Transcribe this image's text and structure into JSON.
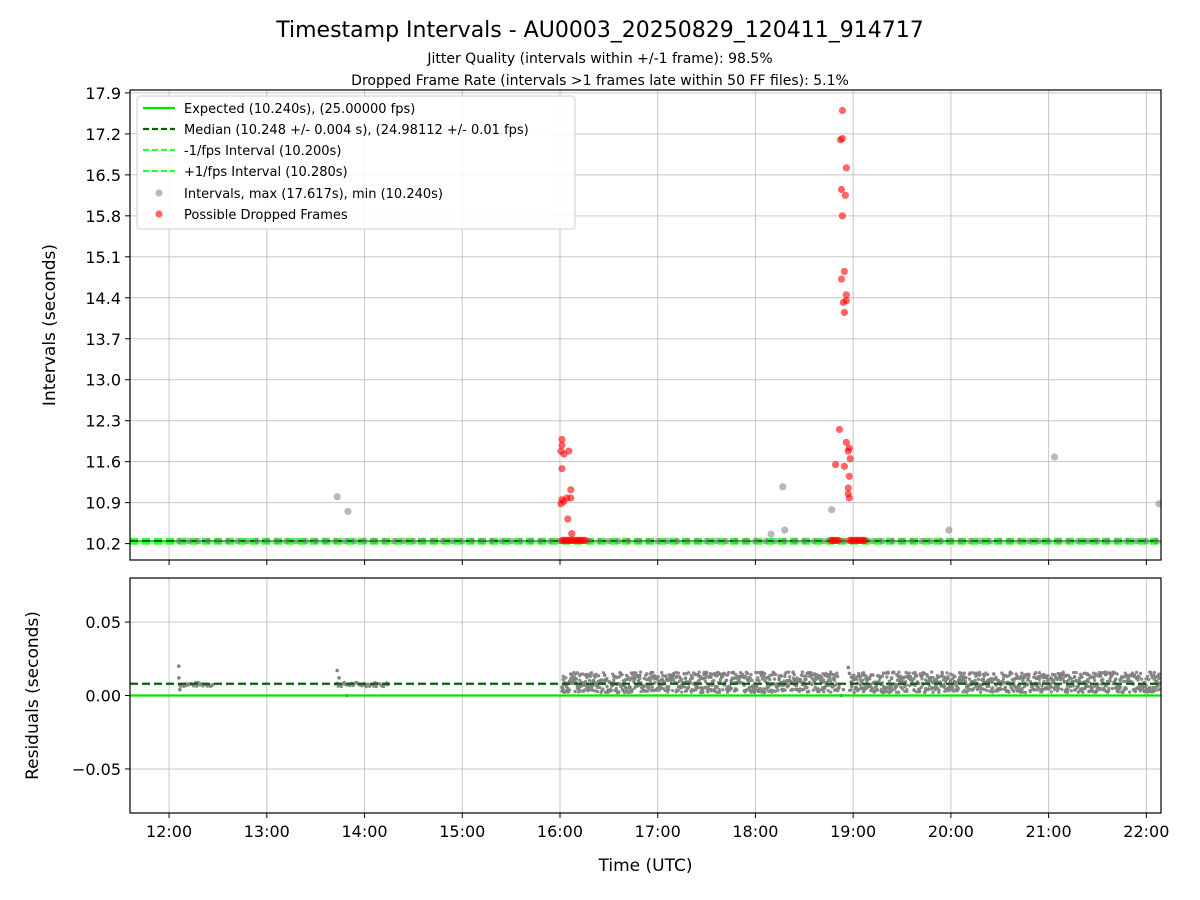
{
  "title": "Timestamp Intervals - AU0003_20250829_120411_914717",
  "subtitle_lines": [
    "Jitter Quality (intervals within +/-1 frame): 98.5%",
    "Dropped Frame Rate (intervals >1 frames late within 50 FF files): 5.1%"
  ],
  "colors": {
    "expected": "#00e600",
    "median": "#006400",
    "bounds": "#33ff33",
    "intervals": "#808080",
    "dropped": "#ff0000",
    "grid": "#b0b0b0"
  },
  "chart_data": [
    {
      "type": "scatter",
      "name": "intervals",
      "xlabel": "",
      "ylabel": "Intervals (seconds)",
      "xlim": [
        11.6,
        22.15
      ],
      "ylim": [
        9.92,
        17.95
      ],
      "yticks": [
        10.2,
        10.9,
        11.6,
        12.3,
        13.0,
        13.7,
        14.4,
        15.1,
        15.8,
        16.5,
        17.2,
        17.9
      ],
      "ytick_labels": [
        "10.2",
        "10.9",
        "11.6",
        "12.3",
        "13.0",
        "13.7",
        "14.4",
        "15.1",
        "15.8",
        "16.5",
        "17.2",
        "17.9"
      ],
      "grid": true,
      "legend_position": "top-left",
      "reference_lines": [
        {
          "label": "Expected (10.240s), (25.00000 fps)",
          "y": 10.24,
          "style": "solid",
          "color": "#00e600"
        },
        {
          "label": "Median (10.248 +/- 0.004 s), (24.98112 +/- 0.01 fps)",
          "y": 10.248,
          "style": "dashed",
          "color": "#006400"
        },
        {
          "label": "-1/fps Interval (10.200s)",
          "y": 10.2,
          "style": "dashed",
          "color": "#33ff33"
        },
        {
          "label": "+1/fps Interval (10.280s)",
          "y": 10.28,
          "style": "dashed",
          "color": "#33ff33"
        }
      ],
      "series": [
        {
          "name": "Intervals, max (17.617s), min (10.240s)",
          "color": "#808080",
          "baseline": {
            "y": 10.248,
            "x_start": 12.1,
            "x_end": 22.15,
            "step": 0.1
          },
          "points": [
            [
              13.72,
              11.0
            ],
            [
              13.83,
              10.75
            ],
            [
              18.16,
              10.36
            ],
            [
              18.28,
              11.17
            ],
            [
              18.3,
              10.43
            ],
            [
              18.78,
              10.78
            ],
            [
              19.98,
              10.43
            ],
            [
              21.06,
              11.68
            ],
            [
              22.13,
              10.88
            ]
          ]
        },
        {
          "name": "Possible Dropped Frames",
          "color": "#ff0000",
          "baseline": {
            "y": 10.255,
            "ranges": [
              [
                16.02,
                16.26
              ],
              [
                18.77,
                18.86
              ],
              [
                18.96,
                19.12
              ]
            ],
            "step": 0.02
          },
          "points": [
            [
              16.02,
              11.98
            ],
            [
              16.02,
              11.88
            ],
            [
              16.01,
              11.78
            ],
            [
              16.04,
              11.73
            ],
            [
              16.09,
              11.78
            ],
            [
              16.02,
              11.48
            ],
            [
              16.11,
              11.12
            ],
            [
              16.02,
              10.95
            ],
            [
              16.07,
              10.98
            ],
            [
              16.11,
              10.98
            ],
            [
              16.01,
              10.88
            ],
            [
              16.04,
              10.92
            ],
            [
              16.08,
              10.62
            ],
            [
              16.12,
              10.37
            ],
            [
              18.89,
              17.6
            ],
            [
              18.89,
              17.12
            ],
            [
              18.87,
              17.1
            ],
            [
              18.93,
              16.62
            ],
            [
              18.88,
              16.25
            ],
            [
              18.92,
              16.15
            ],
            [
              18.89,
              15.8
            ],
            [
              18.91,
              14.85
            ],
            [
              18.88,
              14.72
            ],
            [
              18.93,
              14.45
            ],
            [
              18.93,
              14.35
            ],
            [
              18.9,
              14.32
            ],
            [
              18.91,
              14.15
            ],
            [
              18.86,
              12.15
            ],
            [
              18.93,
              11.93
            ],
            [
              18.96,
              11.83
            ],
            [
              18.95,
              11.78
            ],
            [
              18.97,
              11.65
            ],
            [
              18.82,
              11.55
            ],
            [
              18.91,
              11.52
            ],
            [
              18.96,
              11.35
            ],
            [
              18.95,
              11.15
            ],
            [
              18.95,
              11.05
            ],
            [
              18.96,
              10.98
            ]
          ]
        }
      ]
    },
    {
      "type": "scatter",
      "name": "residuals",
      "xlabel": "Time (UTC)",
      "ylabel": "Residuals (seconds)",
      "xlim": [
        11.6,
        22.15
      ],
      "ylim": [
        -0.08,
        0.08
      ],
      "yticks": [
        -0.05,
        0.0,
        0.05
      ],
      "ytick_labels": [
        "−0.05",
        "0.00",
        "0.05"
      ],
      "xticks": [
        12,
        13,
        14,
        15,
        16,
        17,
        18,
        19,
        20,
        21,
        22
      ],
      "xtick_labels": [
        "12:00",
        "13:00",
        "14:00",
        "15:00",
        "16:00",
        "17:00",
        "18:00",
        "19:00",
        "20:00",
        "21:00",
        "22:00"
      ],
      "grid": true,
      "reference_lines": [
        {
          "y": 0.0,
          "style": "solid",
          "color": "#00e600"
        },
        {
          "y": 0.008,
          "style": "dashed",
          "color": "#006400"
        }
      ],
      "series": [
        {
          "name": "residuals",
          "color": "#808080",
          "segments": [
            {
              "x_start": 12.1,
              "x_end": 12.45,
              "low": 0.006,
              "high": 0.009
            },
            {
              "x_start": 13.7,
              "x_end": 14.25,
              "low": 0.006,
              "high": 0.009
            },
            {
              "x_start": 16.02,
              "x_end": 18.86,
              "low": 0.002,
              "high": 0.016
            },
            {
              "x_start": 18.96,
              "x_end": 22.15,
              "low": 0.002,
              "high": 0.016
            }
          ],
          "points": [
            [
              12.1,
              0.02
            ],
            [
              12.1,
              0.012
            ],
            [
              12.11,
              0.004
            ],
            [
              13.72,
              0.017
            ],
            [
              13.74,
              0.012
            ],
            [
              13.82,
              0.0
            ],
            [
              16.03,
              0.003
            ],
            [
              18.88,
              0.0
            ],
            [
              18.95,
              0.019
            ],
            [
              18.9,
              0.004
            ]
          ]
        }
      ]
    }
  ]
}
